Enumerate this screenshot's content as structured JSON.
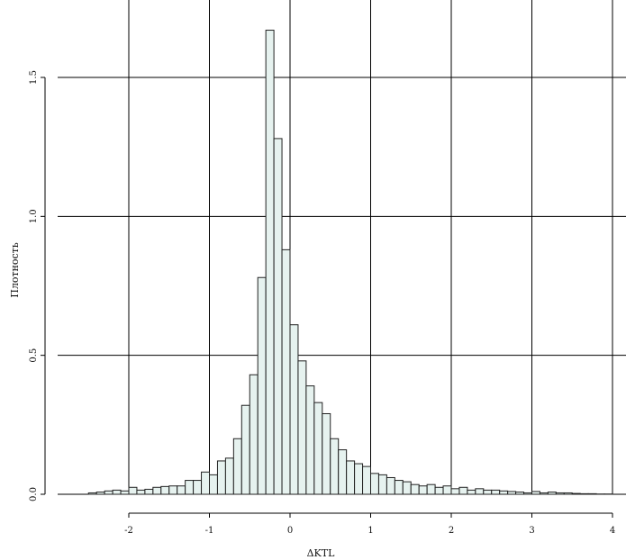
{
  "chart_data": {
    "type": "bar",
    "xlabel": "ΔKTL",
    "ylabel": "Плотность",
    "xlim": [
      -2.9,
      4.0
    ],
    "ylim": [
      0.0,
      1.72
    ],
    "xticks": [
      -2,
      -1,
      0,
      1,
      2,
      3,
      4
    ],
    "xtick_labels": [
      "-2",
      "-1",
      "0",
      "1",
      "2",
      "3",
      "4"
    ],
    "yticks": [
      0.0,
      0.5,
      1.0,
      1.5
    ],
    "ytick_labels": [
      "0.0",
      "0.5",
      "1.0",
      "1.5"
    ],
    "grid": true,
    "bin_width": 0.1,
    "bin_start": -2.5,
    "values": [
      0.005,
      0.008,
      0.012,
      0.015,
      0.012,
      0.025,
      0.015,
      0.018,
      0.025,
      0.028,
      0.03,
      0.03,
      0.05,
      0.05,
      0.08,
      0.07,
      0.12,
      0.13,
      0.2,
      0.32,
      0.43,
      0.78,
      1.67,
      1.28,
      0.88,
      0.61,
      0.48,
      0.39,
      0.33,
      0.29,
      0.2,
      0.16,
      0.12,
      0.11,
      0.1,
      0.075,
      0.07,
      0.06,
      0.05,
      0.045,
      0.035,
      0.03,
      0.035,
      0.025,
      0.03,
      0.02,
      0.025,
      0.015,
      0.02,
      0.015,
      0.015,
      0.012,
      0.01,
      0.008,
      0.005,
      0.01,
      0.005,
      0.008,
      0.005,
      0.005,
      0.003,
      0.002,
      0.002,
      0.001,
      0.001
    ]
  }
}
